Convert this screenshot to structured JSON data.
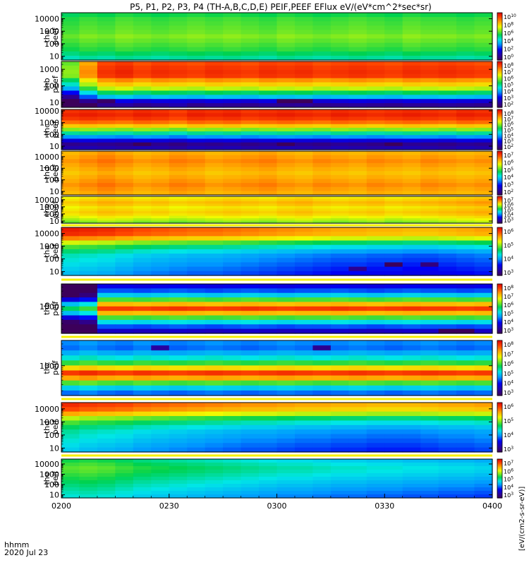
{
  "chart_data": {
    "type": "heatmap",
    "title": "P5, P1, P2, P3, P4 (TH-A,B,C,D,E) PEIF,PEEF EFlux eV/(eV*cm^2*sec*sr)",
    "time_axis": {
      "ticks": [
        "0200",
        "0230",
        "0300",
        "0330",
        "0400"
      ],
      "label_line1": "hhmm",
      "label_line2": "2020 Jul 23",
      "start": "02:00",
      "end": "04:00"
    },
    "colorbar_label": "[eV/(cm2-s-sr-eV)]",
    "panels": [
      {
        "id": "tha-peef",
        "probe": "tha",
        "line1": "tha",
        "line2": "peef",
        "log": true,
        "ylim": [
          5,
          30000
        ],
        "yticks": [
          "10",
          "100",
          "1000",
          "10000"
        ],
        "cbar": {
          "labels": [
            "10^10",
            "10^8",
            "10^6",
            "10^4",
            "10^2",
            "10^0"
          ]
        },
        "rows": [
          0.52,
          0.55,
          0.56,
          0.57,
          0.58,
          0.6,
          0.58,
          0.56,
          0.54,
          0.5,
          0.46
        ],
        "cols": [
          0.0,
          0.02,
          0.01,
          0.03,
          0.02,
          0.01,
          0.02,
          0.03,
          0.02,
          0.03,
          0.02,
          0.01,
          0.03,
          0.02,
          0.01,
          0.02,
          0.03,
          0.02,
          0.01,
          0.03,
          0.02,
          0.02,
          0.01,
          0.02
        ],
        "special": []
      },
      {
        "id": "thb-peef",
        "probe": "thb",
        "line1": "thb",
        "line2": "peef",
        "log": true,
        "ylim": [
          5,
          3000
        ],
        "yticks": [
          "10",
          "100",
          "1000"
        ],
        "cbar": {
          "labels": [
            "10^8",
            "10^7",
            "10^6",
            "10^5",
            "10^4",
            "10^3",
            "10^2"
          ]
        },
        "rows": [
          0.9,
          0.92,
          0.93,
          0.92,
          0.82,
          0.75,
          0.66,
          0.52,
          0.38,
          0.18,
          0.08
        ],
        "cols": [
          -0.3,
          -0.1,
          0.0,
          0.02,
          -0.01,
          0.01,
          0.0,
          -0.01,
          0.01,
          0.0,
          -0.01,
          0.01,
          0.0,
          0.01,
          -0.01,
          0.0,
          0.01,
          0.0,
          -0.01,
          0.01,
          0.0,
          0.01,
          0.0,
          -0.01
        ],
        "special": [
          {
            "row": 9,
            "col": 12,
            "v": 0.0
          },
          {
            "row": 9,
            "col": 13,
            "v": 0.0
          },
          {
            "row": 10,
            "col": 6,
            "v": 0.12
          },
          {
            "row": 9,
            "col": 2,
            "v": 0.02
          }
        ]
      },
      {
        "id": "thc-peef",
        "probe": "thc",
        "line1": "thc",
        "line2": "peef",
        "log": true,
        "ylim": [
          5,
          13000
        ],
        "yticks": [
          "10",
          "100",
          "1000",
          "10000"
        ],
        "cbar": {
          "labels": [
            "10^8",
            "10^7",
            "10^6",
            "10^5",
            "10^4",
            "10^3",
            "10^2"
          ]
        },
        "rows": [
          0.93,
          0.95,
          0.92,
          0.86,
          0.76,
          0.62,
          0.48,
          0.33,
          0.18,
          0.07,
          0.12
        ],
        "cols": [
          0.0,
          0.01,
          0.0,
          -0.01,
          0.01,
          0.0,
          -0.02,
          0.01,
          0.0,
          0.01,
          -0.01,
          0.0,
          0.01,
          0.0,
          -0.01,
          0.01,
          0.0,
          -0.01,
          0.0,
          0.01,
          0.0,
          -0.01,
          0.01,
          0.0
        ],
        "special": [
          {
            "row": 9,
            "col": 4,
            "v": 0.0
          },
          {
            "row": 9,
            "col": 12,
            "v": 0.0
          },
          {
            "row": 9,
            "col": 18,
            "v": 0.0
          }
        ]
      },
      {
        "id": "thd-peef",
        "probe": "thd",
        "line1": "thd",
        "line2": "peef",
        "log": true,
        "ylim": [
          5,
          30000
        ],
        "yticks": [
          "10",
          "100",
          "1000",
          "10000"
        ],
        "cbar": {
          "labels": [
            "10^7",
            "10^6",
            "10^5",
            "10^4",
            "10^3",
            "10^2"
          ]
        },
        "rows": [
          0.78,
          0.8,
          0.82,
          0.8,
          0.78,
          0.76,
          0.78,
          0.8,
          0.82,
          0.8,
          0.78
        ],
        "cols": [
          0.0,
          0.02,
          0.04,
          0.02,
          0.0,
          0.01,
          0.03,
          0.02,
          0.0,
          0.01,
          0.02,
          0.03,
          0.01,
          0.0,
          0.02,
          0.01,
          0.0,
          0.02,
          0.01,
          0.0,
          0.02,
          0.01,
          0.0,
          0.01
        ],
        "special": []
      },
      {
        "id": "the-peef",
        "probe": "the",
        "line1": "the",
        "line2": "peef",
        "log": true,
        "ylim": [
          5,
          30000
        ],
        "yticks": [
          "10",
          "100",
          "1000",
          "10000"
        ],
        "cbar": {
          "labels": [
            "10^7",
            "10^6",
            "10^5",
            "10^4",
            "10^3"
          ]
        },
        "rows": [
          0.7,
          0.73,
          0.76,
          0.74,
          0.7,
          0.72,
          0.74,
          0.72,
          0.68,
          0.64,
          0.6
        ],
        "cols": [
          0.0,
          0.02,
          0.04,
          0.03,
          0.01,
          0.02,
          0.0,
          0.01,
          0.02,
          0.03,
          0.02,
          0.01,
          0.03,
          0.04,
          0.02,
          0.01,
          0.02,
          0.03,
          0.01,
          0.02,
          0.03,
          0.04,
          0.05,
          0.06
        ],
        "special": []
      },
      {
        "id": "tha-peif",
        "probe": "tha",
        "line1": "tha",
        "line2": "peif",
        "log": true,
        "ylim": [
          5,
          30000
        ],
        "yticks": [
          "10",
          "100",
          "1000",
          "10000"
        ],
        "cbar": {
          "labels": [
            "10^6",
            "10^5",
            "10^4",
            "10^3"
          ]
        },
        "rows": [
          0.9,
          0.88,
          0.78,
          0.62,
          0.52,
          0.45,
          0.4,
          0.38,
          0.36,
          0.34,
          0.32
        ],
        "cols": [
          0.06,
          0.05,
          0.04,
          0.02,
          0.0,
          -0.01,
          -0.02,
          -0.03,
          -0.03,
          -0.04,
          -0.05,
          -0.06,
          -0.07,
          -0.08,
          -0.09,
          -0.1,
          -0.1,
          -0.11,
          -0.11,
          -0.12,
          -0.12,
          -0.11,
          -0.1,
          -0.09
        ],
        "special": [
          {
            "row": 8,
            "col": 18,
            "v": 0.0
          },
          {
            "row": 8,
            "col": 20,
            "v": 0.05
          },
          {
            "row": 9,
            "col": 16,
            "v": 0.08
          }
        ]
      },
      {
        "id": "thb-peif",
        "probe": "thb",
        "line1": "thb",
        "line2": "peif",
        "log": true,
        "ylim": [
          150,
          5000
        ],
        "yticks": [
          "1000"
        ],
        "cbar": {
          "labels": [
            "10^8",
            "10^7",
            "10^6",
            "10^5",
            "10^4",
            "10^3"
          ]
        },
        "rows": [
          0.2,
          0.28,
          0.4,
          0.58,
          0.78,
          0.92,
          0.78,
          0.58,
          0.42,
          0.28,
          0.15
        ],
        "cols": [
          -0.4,
          -0.35,
          0.0,
          0.0,
          -0.01,
          0.0,
          0.01,
          0.0,
          -0.01,
          0.0,
          0.01,
          0.0,
          -0.01,
          0.0,
          0.0,
          0.01,
          0.0,
          -0.01,
          0.0,
          0.01,
          0.0,
          0.0,
          -0.01,
          0.0
        ],
        "special": [
          {
            "row": 10,
            "col": 21,
            "v": 0.0
          },
          {
            "row": 10,
            "col": 22,
            "v": 0.0
          }
        ]
      },
      {
        "id": "thc-peif",
        "probe": "thc",
        "line1": "thc",
        "line2": "peif",
        "log": true,
        "ylim": [
          150,
          5000
        ],
        "yticks": [
          "1000"
        ],
        "cbar": {
          "labels": [
            "10^8",
            "10^7",
            "10^6",
            "10^5",
            "10^4",
            "10^3"
          ]
        },
        "rows": [
          0.32,
          0.3,
          0.36,
          0.44,
          0.56,
          0.74,
          0.92,
          0.8,
          0.58,
          0.4,
          0.3
        ],
        "cols": [
          0.0,
          0.02,
          0.0,
          -0.01,
          0.01,
          0.0,
          -0.01,
          0.0,
          0.01,
          0.0,
          -0.01,
          0.0,
          0.01,
          0.0,
          -0.01,
          0.0,
          0.01,
          0.0,
          -0.01,
          0.0,
          0.01,
          0.0,
          -0.01,
          0.0
        ],
        "special": [
          {
            "row": 1,
            "col": 5,
            "v": 0.1
          },
          {
            "row": 1,
            "col": 14,
            "v": 0.08
          }
        ]
      },
      {
        "id": "thd-peif",
        "probe": "thd",
        "line1": "thd",
        "line2": "peif",
        "log": true,
        "ylim": [
          5,
          30000
        ],
        "yticks": [
          "10",
          "100",
          "1000",
          "10000"
        ],
        "cbar": {
          "labels": [
            "10^6",
            "10^5",
            "10^4",
            "10^3"
          ]
        },
        "rows": [
          0.88,
          0.84,
          0.74,
          0.6,
          0.52,
          0.46,
          0.42,
          0.4,
          0.38,
          0.36,
          0.34
        ],
        "cols": [
          0.06,
          0.04,
          0.03,
          0.02,
          0.0,
          -0.01,
          -0.02,
          -0.03,
          -0.04,
          -0.05,
          -0.06,
          -0.06,
          -0.07,
          -0.08,
          -0.08,
          -0.09,
          -0.09,
          -0.1,
          -0.1,
          -0.1,
          -0.09,
          -0.08,
          -0.08,
          -0.07
        ],
        "special": []
      },
      {
        "id": "the-peif",
        "probe": "the",
        "line1": "the",
        "line2": "peif",
        "log": true,
        "ylim": [
          5,
          30000
        ],
        "yticks": [
          "10",
          "100",
          "1000",
          "10000"
        ],
        "cbar": {
          "labels": [
            "10^7",
            "10^6",
            "10^5",
            "10^4",
            "10^3"
          ]
        },
        "rows": [
          0.5,
          0.53,
          0.55,
          0.54,
          0.52,
          0.5,
          0.48,
          0.46,
          0.44,
          0.42,
          0.4
        ],
        "cols": [
          0.04,
          0.05,
          0.04,
          0.02,
          0.0,
          -0.01,
          -0.02,
          -0.03,
          -0.04,
          -0.05,
          -0.06,
          -0.07,
          -0.08,
          -0.08,
          -0.09,
          -0.1,
          -0.1,
          -0.11,
          -0.11,
          -0.12,
          -0.12,
          -0.13,
          -0.13,
          -0.14
        ],
        "special": []
      }
    ]
  }
}
